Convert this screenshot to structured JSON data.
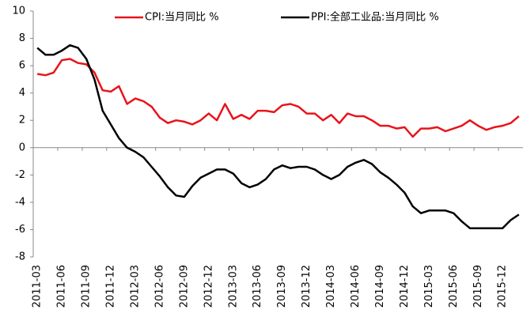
{
  "chart_data": {
    "type": "line",
    "categories": [
      "2011-03",
      null,
      null,
      "2011-06",
      null,
      null,
      "2011-09",
      null,
      null,
      "2011-12",
      null,
      null,
      "2012-03",
      null,
      null,
      "2012-06",
      null,
      null,
      "2012-09",
      null,
      null,
      "2012-12",
      null,
      null,
      "2013-03",
      null,
      null,
      "2013-06",
      null,
      null,
      "2013-09",
      null,
      null,
      "2013-12",
      null,
      null,
      "2014-03",
      null,
      null,
      "2014-06",
      null,
      null,
      "2014-09",
      null,
      null,
      "2014-12",
      null,
      null,
      "2015-03",
      null,
      null,
      "2015-06",
      null,
      null,
      "2015-09",
      null,
      null,
      "2015-12",
      null,
      null
    ],
    "series": [
      {
        "name": "CPI:当月同比 %",
        "color": "#e8141b",
        "values": [
          5.4,
          5.3,
          5.5,
          6.4,
          6.5,
          6.2,
          6.1,
          5.5,
          4.2,
          4.1,
          4.5,
          3.2,
          3.6,
          3.4,
          3.0,
          2.2,
          1.8,
          2.0,
          1.9,
          1.7,
          2.0,
          2.5,
          2.0,
          3.2,
          2.1,
          2.4,
          2.1,
          2.7,
          2.7,
          2.6,
          3.1,
          3.2,
          3.0,
          2.5,
          2.5,
          2.0,
          2.4,
          1.8,
          2.5,
          2.3,
          2.3,
          2.0,
          1.6,
          1.6,
          1.4,
          1.5,
          0.8,
          1.4,
          1.4,
          1.5,
          1.2,
          1.4,
          1.6,
          2.0,
          1.6,
          1.3,
          1.5,
          1.6,
          1.8,
          2.3
        ]
      },
      {
        "name": "PPI:全部工业品:当月同比 %",
        "color": "#000000",
        "values": [
          7.3,
          6.8,
          6.8,
          7.1,
          7.5,
          7.3,
          6.5,
          5.0,
          2.7,
          1.7,
          0.7,
          0.0,
          -0.3,
          -0.7,
          -1.4,
          -2.1,
          -2.9,
          -3.5,
          -3.6,
          -2.8,
          -2.2,
          -1.9,
          -1.6,
          -1.6,
          -1.9,
          -2.6,
          -2.9,
          -2.7,
          -2.3,
          -1.6,
          -1.3,
          -1.5,
          -1.4,
          -1.4,
          -1.6,
          -2.0,
          -2.3,
          -2.0,
          -1.4,
          -1.1,
          -0.9,
          -1.2,
          -1.8,
          -2.2,
          -2.7,
          -3.3,
          -4.3,
          -4.8,
          -4.6,
          -4.6,
          -4.6,
          -4.8,
          -5.4,
          -5.9,
          -5.9,
          -5.9,
          -5.9,
          -5.9,
          -5.3,
          -4.9
        ]
      }
    ],
    "ylim": [
      -8,
      10
    ],
    "yticks": [
      -8,
      -6,
      -4,
      -2,
      0,
      2,
      4,
      6,
      8,
      10
    ],
    "grid": false,
    "legend": "top"
  }
}
